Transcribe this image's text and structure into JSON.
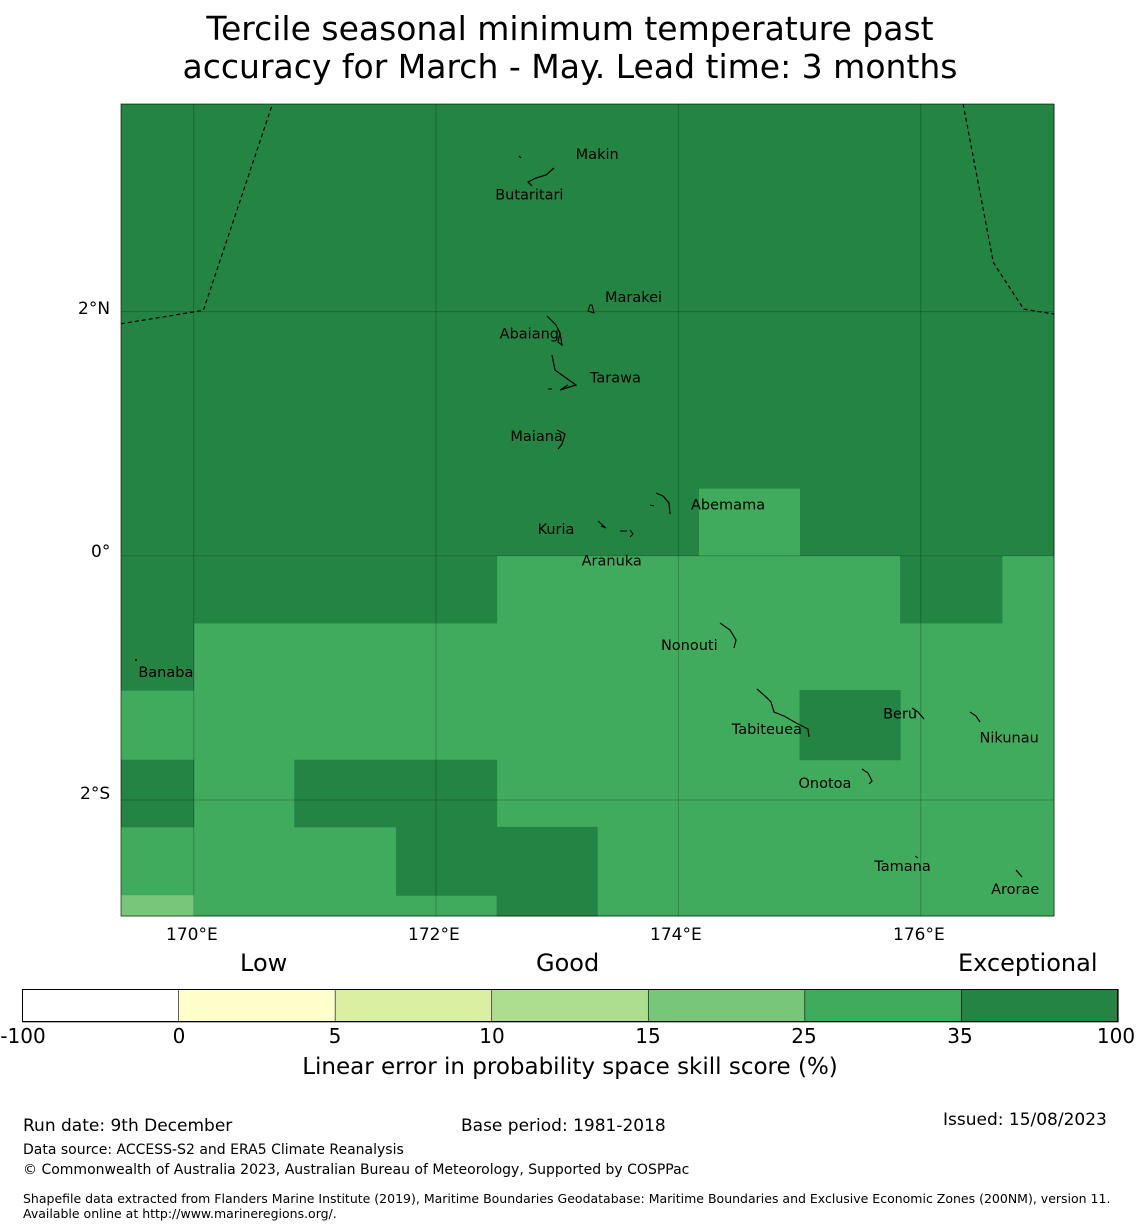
{
  "title": {
    "line1": "Tercile seasonal minimum temperature past",
    "line2": "accuracy for March - May. Lead time: 3 months"
  },
  "map": {
    "lon_range": [
      169.4,
      177.1
    ],
    "lat_range": [
      -2.95,
      3.7
    ],
    "grid_lons": [
      170,
      172,
      174,
      176
    ],
    "grid_lats": [
      2,
      0,
      -2
    ],
    "lon_labels": [
      "170°E",
      "172°E",
      "174°E",
      "176°E"
    ],
    "lat_labels": [
      "2°N",
      "0°",
      "2°S"
    ],
    "cell_colors": {
      "35-100": "#238443",
      "25-35": "#41ab5d",
      "15-25": "#78c679"
    },
    "cells": [
      {
        "lon": [
          169.4,
          177.1
        ],
        "lat": [
          0,
          3.7
        ],
        "cls": "35-100"
      },
      {
        "lon": [
          174.17,
          175.0
        ],
        "lat": [
          0,
          0.55
        ],
        "cls": "25-35"
      },
      {
        "lon": [
          169.4,
          177.1
        ],
        "lat": [
          -2.95,
          0
        ],
        "cls": "25-35"
      },
      {
        "lon": [
          169.4,
          172.5
        ],
        "lat": [
          -0.55,
          0
        ],
        "cls": "35-100"
      },
      {
        "lon": [
          169.4,
          170.0
        ],
        "lat": [
          -1.1,
          -0.55
        ],
        "cls": "35-100"
      },
      {
        "lon": [
          175.83,
          176.67
        ],
        "lat": [
          -0.55,
          0
        ],
        "cls": "35-100"
      },
      {
        "lon": [
          175.0,
          175.83
        ],
        "lat": [
          -1.67,
          -1.1
        ],
        "cls": "35-100"
      },
      {
        "lon": [
          169.4,
          170.0
        ],
        "lat": [
          -2.22,
          -1.67
        ],
        "cls": "35-100"
      },
      {
        "lon": [
          170.83,
          172.5
        ],
        "lat": [
          -2.22,
          -1.67
        ],
        "cls": "35-100"
      },
      {
        "lon": [
          171.67,
          172.5
        ],
        "lat": [
          -2.78,
          -2.22
        ],
        "cls": "35-100"
      },
      {
        "lon": [
          172.5,
          173.33
        ],
        "lat": [
          -2.95,
          -2.22
        ],
        "cls": "35-100"
      },
      {
        "lon": [
          169.4,
          170.0
        ],
        "lat": [
          -2.95,
          -2.78
        ],
        "cls": "15-25"
      }
    ],
    "eez_lines": [
      [
        [
          169.4,
          1.9
        ],
        [
          170.08,
          2.01
        ],
        [
          170.65,
          3.7
        ]
      ],
      [
        [
          176.35,
          3.7
        ],
        [
          176.6,
          2.4
        ],
        [
          176.85,
          2.02
        ],
        [
          177.1,
          1.98
        ]
      ]
    ],
    "islands": [
      {
        "name": "Makin",
        "lon": 173.33,
        "lat": 3.29
      },
      {
        "name": "Butaritari",
        "lon": 172.77,
        "lat": 2.96
      },
      {
        "name": "Marakei",
        "lon": 173.63,
        "lat": 2.12
      },
      {
        "name": "Abaiang",
        "lon": 172.77,
        "lat": 1.82
      },
      {
        "name": "Tarawa",
        "lon": 173.48,
        "lat": 1.46
      },
      {
        "name": "Maiana",
        "lon": 172.83,
        "lat": 0.98
      },
      {
        "name": "Abemama",
        "lon": 174.41,
        "lat": 0.42
      },
      {
        "name": "Kuria",
        "lon": 172.99,
        "lat": 0.22
      },
      {
        "name": "Aranuka",
        "lon": 173.45,
        "lat": -0.04
      },
      {
        "name": "Nonouti",
        "lon": 174.09,
        "lat": -0.73
      },
      {
        "name": "Banaba",
        "lon": 169.77,
        "lat": -0.95
      },
      {
        "name": "Tabiteuea",
        "lon": 174.73,
        "lat": -1.42
      },
      {
        "name": "Beru",
        "lon": 175.83,
        "lat": -1.29
      },
      {
        "name": "Nikunau",
        "lon": 176.73,
        "lat": -1.49
      },
      {
        "name": "Onotoa",
        "lon": 175.21,
        "lat": -1.86
      },
      {
        "name": "Tamana",
        "lon": 175.85,
        "lat": -2.54
      },
      {
        "name": "Arorae",
        "lon": 176.78,
        "lat": -2.73
      }
    ]
  },
  "colorbar": {
    "categories": [
      "Low",
      "Good",
      "Exceptional"
    ],
    "ticks": [
      "-100",
      "0",
      "5",
      "10",
      "15",
      "25",
      "35",
      "100"
    ],
    "colors": [
      "#ffffff",
      "#ffffcc",
      "#d9f0a3",
      "#addd8e",
      "#78c679",
      "#41ab5d",
      "#238443"
    ],
    "label": "Linear error in probability space skill score (%)"
  },
  "footer": {
    "run_date": "Run date: 9th December",
    "base_period": "Base period: 1981-2018",
    "issued": "Issued: 15/08/2023",
    "data_source": "Data source: ACCESS-S2 and ERA5 Climate Reanalysis",
    "copyright": "© Commonwealth of Australia 2023, Australian Bureau of Meteorology, Supported by COSPPac",
    "shapefile": "Shapefile data extracted from Flanders Marine Institute (2019), Maritime Boundaries Geodatabase: Maritime Boundaries and Exclusive Economic Zones (200NM), version 11. Available online at http://www.marineregions.org/."
  }
}
